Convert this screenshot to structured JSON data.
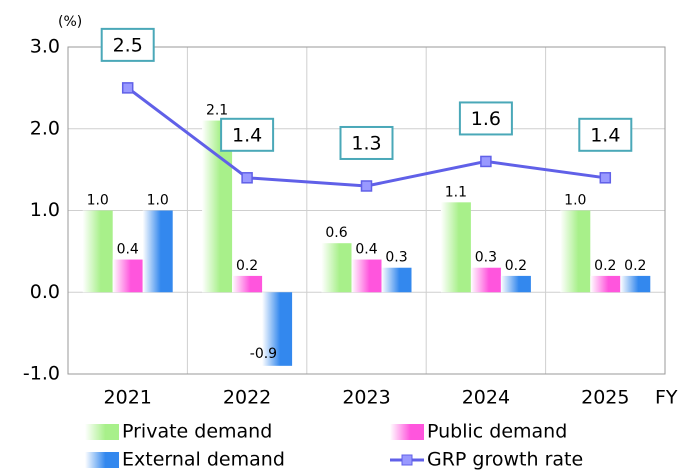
{
  "chart_data": {
    "type": "bar",
    "y_unit": "(%)",
    "x_label": "FY",
    "categories": [
      "2021",
      "2022",
      "2023",
      "2024",
      "2025"
    ],
    "series": [
      {
        "name": "Private demand",
        "color": "#a8f08a",
        "values": [
          1.0,
          2.1,
          0.6,
          1.1,
          1.0
        ],
        "value_labels": [
          "1.0",
          "2.1",
          "0.6",
          "1.1",
          "1.0"
        ]
      },
      {
        "name": "Public demand",
        "color": "#ff55dd",
        "values": [
          0.4,
          0.2,
          0.4,
          0.3,
          0.2
        ],
        "value_labels": [
          "0.4",
          "0.2",
          "0.4",
          "0.3",
          "0.2"
        ]
      },
      {
        "name": "External demand",
        "color": "#3388ee",
        "values": [
          1.0,
          -0.9,
          0.3,
          0.2,
          0.2
        ],
        "value_labels": [
          "1.0",
          "-0.9",
          "0.3",
          "0.2",
          "0.2"
        ]
      },
      {
        "name": "GRP growth rate",
        "type": "line",
        "color": "#6060e8",
        "values": [
          2.5,
          1.4,
          1.3,
          1.6,
          1.4
        ]
      }
    ],
    "ylim": [
      -1,
      3
    ],
    "yticks": [
      {
        "value": -1,
        "label": "-1.0"
      },
      {
        "value": 0,
        "label": "0.0"
      },
      {
        "value": 1,
        "label": "1.0"
      },
      {
        "value": 2,
        "label": "2.0"
      },
      {
        "value": 3,
        "label": "3.0"
      }
    ],
    "grid": true
  }
}
